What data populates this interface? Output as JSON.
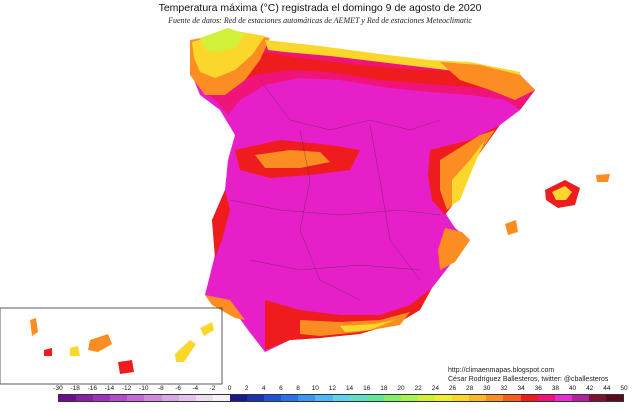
{
  "header": {
    "title": "Temperatura máxima (°C) registrada el domingo 9 de agosto de 2020",
    "subtitle": "Fuente de datos: Red de estaciones automáticas de AEMET y Red de estaciones Meteoclimatic"
  },
  "credits": {
    "url": "http://climaenmapas.blogspot.com",
    "author": "César Rodríguez Ballesteros, twitter: @cballesteros"
  },
  "legend": {
    "ticks": [
      "-30",
      "-18",
      "-16",
      "-14",
      "-12",
      "-10",
      "-8",
      "-6",
      "-4",
      "-2",
      "0",
      "2",
      "4",
      "6",
      "8",
      "10",
      "12",
      "14",
      "16",
      "18",
      "20",
      "22",
      "24",
      "26",
      "28",
      "30",
      "32",
      "34",
      "36",
      "38",
      "40",
      "42",
      "44",
      "50"
    ],
    "colors": [
      "#6a0f8e",
      "#8a1fa8",
      "#a030c0",
      "#b54ccd",
      "#c46ad6",
      "#d089dd",
      "#dba7e4",
      "#e5c2eb",
      "#eedcf1",
      "#f7f0f8",
      "#1a1a8c",
      "#1e2fb0",
      "#2150d2",
      "#2a72ea",
      "#3a95f5",
      "#4cb8f7",
      "#5dd4ec",
      "#5de0c4",
      "#5fe89a",
      "#83f06a",
      "#a9f24c",
      "#d0f03a",
      "#eeee33",
      "#fbd72c",
      "#fcb626",
      "#fb8d22",
      "#f65e1e",
      "#ee1c1c",
      "#f0147a",
      "#e52cd6",
      "#b51fa0",
      "#7e1230",
      "#5a0c1c"
    ]
  },
  "map": {
    "region": "Península Ibérica, Baleares y Canarias",
    "colors": {
      "extreme": "#e61fc9",
      "hot": "#f0147a",
      "warm": "#ee1c1c",
      "mild": "#fb8d22",
      "cool": "#fbd72c",
      "fresh": "#d0f03a",
      "sea": "#ffffff"
    }
  }
}
